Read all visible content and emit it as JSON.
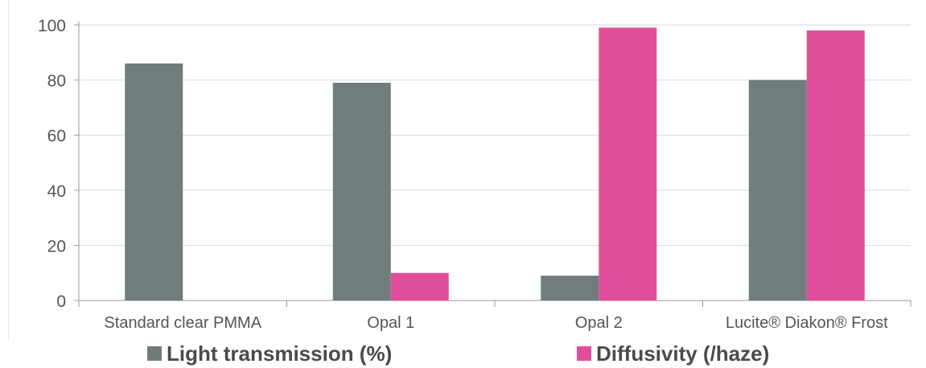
{
  "chart_data": {
    "type": "bar",
    "categories": [
      "Standard clear PMMA",
      "Opal 1",
      "Opal 2",
      "Lucite® Diakon® Frost"
    ],
    "series": [
      {
        "name": "Light transmission (%)",
        "color": "#717d7c",
        "values": [
          86,
          79,
          9,
          80
        ]
      },
      {
        "name": "Diffusivity (/haze)",
        "color": "#e0509a",
        "values": [
          0,
          10,
          99,
          98
        ]
      }
    ],
    "ylim": [
      0,
      100
    ],
    "yticks": [
      "0",
      "20",
      "40",
      "60",
      "80",
      "100"
    ],
    "grid": true,
    "legend": "bottom"
  }
}
